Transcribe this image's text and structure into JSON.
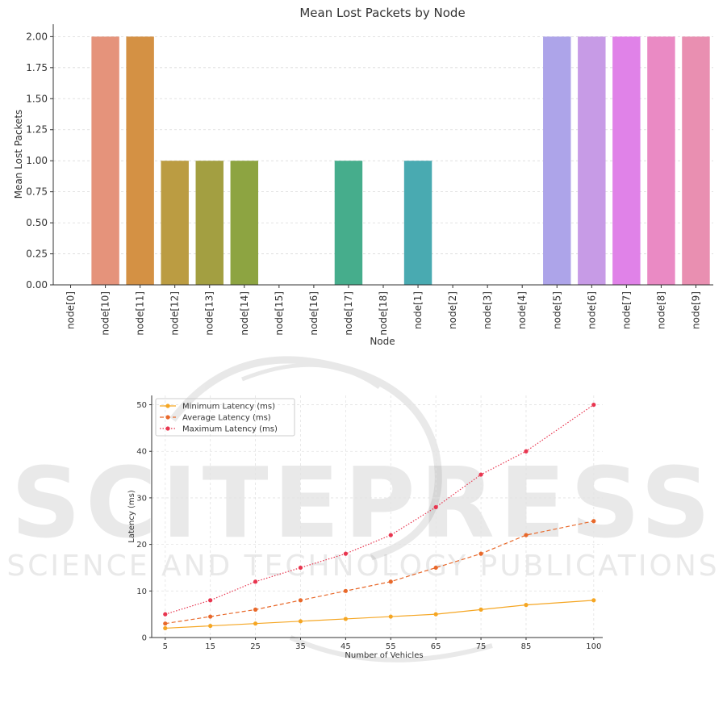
{
  "watermark": {
    "logo_text": "SCITEPRESS",
    "subtitle": "SCIENCE AND TECHNOLOGY PUBLICATIONS"
  },
  "chart_data": [
    {
      "type": "bar",
      "title": "Mean Lost Packets by Node",
      "xlabel": "Node",
      "ylabel": "Mean Lost Packets",
      "ylim": [
        0,
        2.1
      ],
      "yticks": [
        "0.00",
        "0.25",
        "0.50",
        "0.75",
        "1.00",
        "1.25",
        "1.50",
        "1.75",
        "2.00"
      ],
      "grid": true,
      "categories": [
        "node[0]",
        "node[10]",
        "node[11]",
        "node[12]",
        "node[13]",
        "node[14]",
        "node[15]",
        "node[16]",
        "node[17]",
        "node[18]",
        "node[1]",
        "node[2]",
        "node[3]",
        "node[4]",
        "node[5]",
        "node[6]",
        "node[7]",
        "node[8]",
        "node[9]"
      ],
      "values": [
        0,
        2,
        2,
        1,
        1,
        1,
        0,
        0,
        1,
        0,
        1,
        0,
        0,
        0,
        2,
        2,
        2,
        2,
        2
      ],
      "colors": [
        "#f77189",
        "#e5937b",
        "#d49144",
        "#bb9c42",
        "#a39f41",
        "#8da441",
        "#50b147",
        "#4bae7e",
        "#46ad8c",
        "#48ac9f",
        "#49aab1",
        "#50aec8",
        "#5eaadb",
        "#96a3dd",
        "#ada4e9",
        "#c79be6",
        "#e082e8",
        "#ea8ac4",
        "#e98fb1"
      ]
    },
    {
      "type": "line",
      "title": "",
      "xlabel": "Number of Vehicles",
      "ylabel": "Latency (ms)",
      "x": [
        5,
        15,
        25,
        35,
        45,
        55,
        65,
        75,
        85,
        100
      ],
      "xlim": [
        2,
        102
      ],
      "ylim": [
        0,
        52
      ],
      "yticks": [
        0,
        10,
        20,
        30,
        40,
        50
      ],
      "grid": true,
      "legend_position": "upper-left",
      "series": [
        {
          "name": "Minimum Latency (ms)",
          "values": [
            2,
            2.5,
            3,
            3.5,
            4,
            4.5,
            5,
            6,
            7,
            8
          ],
          "color": "#f5a623",
          "style": "solid"
        },
        {
          "name": "Average Latency (ms)",
          "values": [
            3,
            4.5,
            6,
            8,
            10,
            12,
            15,
            18,
            22,
            25
          ],
          "color": "#e8682a",
          "style": "dashed"
        },
        {
          "name": "Maximum Latency (ms)",
          "values": [
            5,
            8,
            12,
            15,
            18,
            22,
            28,
            35,
            40,
            50
          ],
          "color": "#e8354f",
          "style": "dotted"
        }
      ]
    }
  ]
}
